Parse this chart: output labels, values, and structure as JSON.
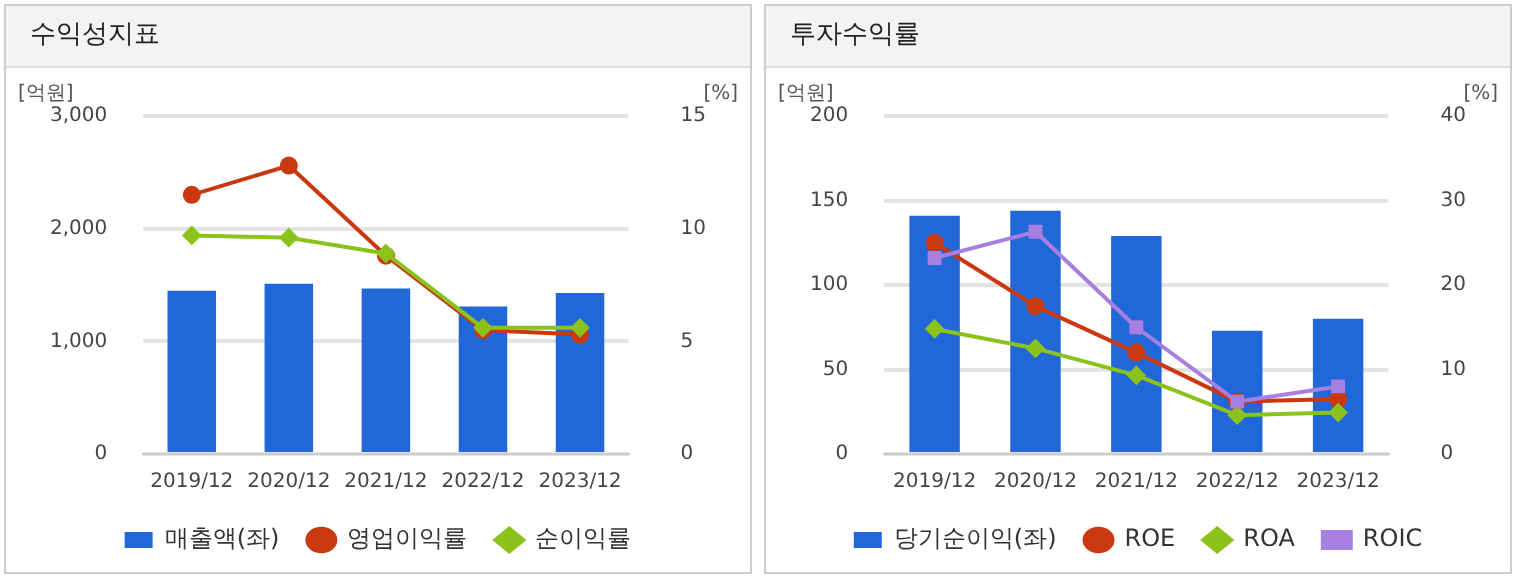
{
  "chart_data": [
    {
      "type": "bar",
      "title": "수익성지표",
      "ylabel": "[억원]",
      "y2label": "[%]",
      "categories": [
        "2019/12",
        "2020/12",
        "2021/12",
        "2022/12",
        "2023/12"
      ],
      "ylim": [
        0,
        3000
      ],
      "yticks": [
        {
          "value": 0,
          "label": "0"
        },
        {
          "value": 1000,
          "label": "1,000"
        },
        {
          "value": 2000,
          "label": "2,000"
        },
        {
          "value": 3000,
          "label": "3,000"
        }
      ],
      "y2lim": [
        0,
        15
      ],
      "y2ticks": [
        0,
        5,
        10,
        15
      ],
      "grid": "y",
      "legend": "bottom",
      "series": [
        {
          "name": "매출액(좌)",
          "color": "#2267d8",
          "values": [
            1450,
            1510,
            1470,
            1310,
            1430
          ]
        },
        {
          "name": "영업이익률",
          "type": "line",
          "axis": "y2",
          "marker": "circle",
          "color": "#c9380f",
          "values": [
            11.5,
            12.8,
            8.8,
            5.5,
            5.3
          ]
        },
        {
          "name": "순이익률",
          "type": "line",
          "axis": "y2",
          "marker": "diamond",
          "color": "#8bc21c",
          "values": [
            9.7,
            9.6,
            8.9,
            5.6,
            5.6
          ]
        }
      ]
    },
    {
      "type": "bar",
      "title": "투자수익률",
      "ylabel": "[억원]",
      "y2label": "[%]",
      "categories": [
        "2019/12",
        "2020/12",
        "2021/12",
        "2022/12",
        "2023/12"
      ],
      "ylim": [
        0,
        200
      ],
      "yticks": [
        0,
        50,
        100,
        150,
        200
      ],
      "y2lim": [
        0,
        40
      ],
      "y2ticks": [
        0,
        10,
        20,
        30,
        40
      ],
      "grid": "y",
      "legend": "bottom",
      "series": [
        {
          "name": "당기순이익(좌)",
          "color": "#2267d8",
          "values": [
            141,
            144,
            129,
            73,
            80
          ]
        },
        {
          "name": "ROE",
          "type": "line",
          "axis": "y2",
          "marker": "circle",
          "color": "#c9380f",
          "values": [
            25,
            17.5,
            12,
            6.2,
            6.5
          ]
        },
        {
          "name": "ROA",
          "type": "line",
          "axis": "y2",
          "marker": "diamond",
          "color": "#8bc21c",
          "values": [
            14.8,
            12.5,
            9.3,
            4.6,
            4.9
          ]
        },
        {
          "name": "ROIC",
          "type": "line",
          "axis": "y2",
          "marker": "square",
          "color": "#a77fe0",
          "values": [
            23.2,
            26.3,
            15,
            6.2,
            8
          ]
        }
      ]
    }
  ]
}
